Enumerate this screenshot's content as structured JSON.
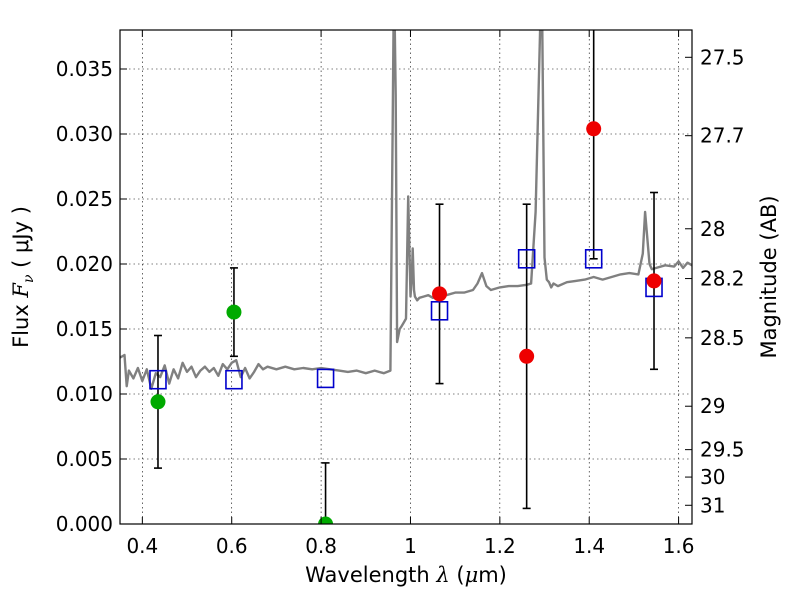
{
  "chart_data": {
    "type": "scatter",
    "xlabel": {
      "prefix": "Wavelength  ",
      "symbol": "λ",
      "open": " (",
      "unit": "μ",
      "unit_rest": "m)"
    },
    "ylabel": {
      "prefix": "Flux  ",
      "symbol": "F",
      "sub": "ν",
      "unit": "  ( μJy )"
    },
    "y2label": "Magnitude (AB)",
    "xlim": [
      0.35,
      1.63
    ],
    "ylim": [
      0.0,
      0.038
    ],
    "grid": true,
    "x_ticks": [
      {
        "value": 0.4,
        "label": "0.4"
      },
      {
        "value": 0.6,
        "label": "0.6"
      },
      {
        "value": 0.8,
        "label": "0.8"
      },
      {
        "value": 1.0,
        "label": "1"
      },
      {
        "value": 1.2,
        "label": "1.2"
      },
      {
        "value": 1.4,
        "label": "1.4"
      },
      {
        "value": 1.6,
        "label": "1.6"
      }
    ],
    "y_ticks": [
      {
        "value": 0.0,
        "label": "0.000"
      },
      {
        "value": 0.005,
        "label": "0.005"
      },
      {
        "value": 0.01,
        "label": "0.010"
      },
      {
        "value": 0.015,
        "label": "0.015"
      },
      {
        "value": 0.02,
        "label": "0.020"
      },
      {
        "value": 0.025,
        "label": "0.025"
      },
      {
        "value": 0.03,
        "label": "0.030"
      },
      {
        "value": 0.035,
        "label": "0.035"
      }
    ],
    "y2_ticks": [
      {
        "flux": 0.0359,
        "label": "27.5"
      },
      {
        "flux": 0.02987,
        "label": "27.7"
      },
      {
        "flux": 0.02271,
        "label": "28"
      },
      {
        "flux": 0.01888,
        "label": "28.2"
      },
      {
        "flux": 0.01432,
        "label": "28.5"
      },
      {
        "flux": 0.00906,
        "label": "29"
      },
      {
        "flux": 0.00572,
        "label": "29.5"
      },
      {
        "flux": 0.00361,
        "label": "30"
      },
      {
        "flux": 0.00144,
        "label": "31"
      }
    ],
    "series": [
      {
        "kind": "template_spectrum",
        "color": "#808080",
        "x": [
          0.35,
          0.36,
          0.365,
          0.37,
          0.38,
          0.39,
          0.4,
          0.41,
          0.42,
          0.43,
          0.44,
          0.45,
          0.46,
          0.47,
          0.48,
          0.49,
          0.5,
          0.51,
          0.52,
          0.53,
          0.54,
          0.55,
          0.56,
          0.57,
          0.58,
          0.59,
          0.6,
          0.61,
          0.62,
          0.63,
          0.64,
          0.65,
          0.66,
          0.67,
          0.68,
          0.7,
          0.72,
          0.74,
          0.76,
          0.78,
          0.8,
          0.82,
          0.84,
          0.86,
          0.88,
          0.9,
          0.92,
          0.94,
          0.955,
          0.96,
          0.962,
          0.965,
          0.967,
          0.97,
          0.973,
          0.976,
          0.98,
          0.985,
          0.99,
          0.995,
          1.0,
          1.003,
          1.005,
          1.008,
          1.01,
          1.015,
          1.02,
          1.03,
          1.04,
          1.05,
          1.06,
          1.07,
          1.08,
          1.1,
          1.12,
          1.14,
          1.15,
          1.16,
          1.17,
          1.18,
          1.2,
          1.22,
          1.24,
          1.26,
          1.27,
          1.28,
          1.29,
          1.295,
          1.3,
          1.305,
          1.31,
          1.315,
          1.32,
          1.33,
          1.35,
          1.37,
          1.39,
          1.41,
          1.43,
          1.45,
          1.47,
          1.49,
          1.51,
          1.52,
          1.525,
          1.53,
          1.535,
          1.54,
          1.55,
          1.57,
          1.59,
          1.6,
          1.61,
          1.62,
          1.63
        ],
        "y": [
          0.0128,
          0.013,
          0.0106,
          0.0118,
          0.0112,
          0.012,
          0.011,
          0.0119,
          0.0104,
          0.0116,
          0.0113,
          0.0122,
          0.0108,
          0.0119,
          0.0112,
          0.0124,
          0.0117,
          0.0121,
          0.0113,
          0.0118,
          0.0121,
          0.0117,
          0.012,
          0.0114,
          0.0123,
          0.0119,
          0.0124,
          0.0126,
          0.0113,
          0.012,
          0.0112,
          0.0117,
          0.0123,
          0.0119,
          0.0121,
          0.0119,
          0.0121,
          0.0119,
          0.012,
          0.0119,
          0.012,
          0.0119,
          0.0118,
          0.0117,
          0.0118,
          0.0116,
          0.0118,
          0.0116,
          0.0118,
          0.03,
          0.038,
          0.038,
          0.033,
          0.014,
          0.0145,
          0.015,
          0.0152,
          0.0155,
          0.0158,
          0.0252,
          0.0175,
          0.019,
          0.0212,
          0.018,
          0.0175,
          0.0172,
          0.0174,
          0.0175,
          0.0176,
          0.0174,
          0.0175,
          0.0176,
          0.0176,
          0.0178,
          0.0178,
          0.018,
          0.0185,
          0.0193,
          0.0183,
          0.018,
          0.0182,
          0.0183,
          0.0183,
          0.0184,
          0.0185,
          0.024,
          0.038,
          0.038,
          0.0205,
          0.0188,
          0.0186,
          0.0182,
          0.0185,
          0.0183,
          0.0186,
          0.0187,
          0.0188,
          0.019,
          0.0188,
          0.019,
          0.0192,
          0.0193,
          0.0192,
          0.0208,
          0.024,
          0.022,
          0.02,
          0.0196,
          0.0197,
          0.0199,
          0.0198,
          0.0202,
          0.0197,
          0.0201,
          0.0199
        ]
      },
      {
        "kind": "model_photometry",
        "marker": "open-square",
        "color": "#0000cc",
        "x": [
          0.435,
          0.605,
          0.81,
          1.065,
          1.26,
          1.41,
          1.545
        ],
        "y": [
          0.0111,
          0.0111,
          0.0112,
          0.0164,
          0.0204,
          0.0204,
          0.0182
        ]
      },
      {
        "kind": "optical_photometry",
        "marker": "filled-circle",
        "color": "#00aa00",
        "x": [
          0.435,
          0.605,
          0.81
        ],
        "y": [
          0.0094,
          0.0163,
          0.0
        ],
        "yerr": [
          0.0051,
          0.0034,
          0.0047
        ]
      },
      {
        "kind": "nir_photometry",
        "marker": "filled-circle",
        "color": "#ee0000",
        "x": [
          1.065,
          1.26,
          1.41,
          1.545
        ],
        "y": [
          0.0177,
          0.0129,
          0.0304,
          0.0187
        ],
        "yerr": [
          0.0069,
          0.0117,
          0.01,
          0.0068
        ]
      }
    ]
  }
}
